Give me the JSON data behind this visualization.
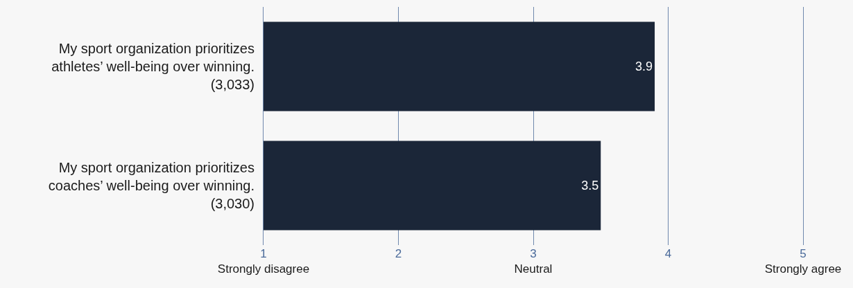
{
  "chart_data": {
    "type": "bar",
    "orientation": "horizontal",
    "categories": [
      "My sport organization prioritizes athletes’ well-being over winning. (3,033)",
      "My sport organization prioritizes coaches’ well-being over winning. (3,030)"
    ],
    "values": [
      3.9,
      3.5
    ],
    "color": "#1b2638",
    "data_labels": true,
    "xlim": [
      1,
      5
    ],
    "xticks": [
      {
        "value": 1,
        "label": "1\nStrongly disagree"
      },
      2,
      {
        "value": 3,
        "label": "3\nNeutral"
      },
      4,
      {
        "value": 5,
        "label": "5\nStrongly agree"
      }
    ],
    "grid": "x",
    "legend": false
  }
}
